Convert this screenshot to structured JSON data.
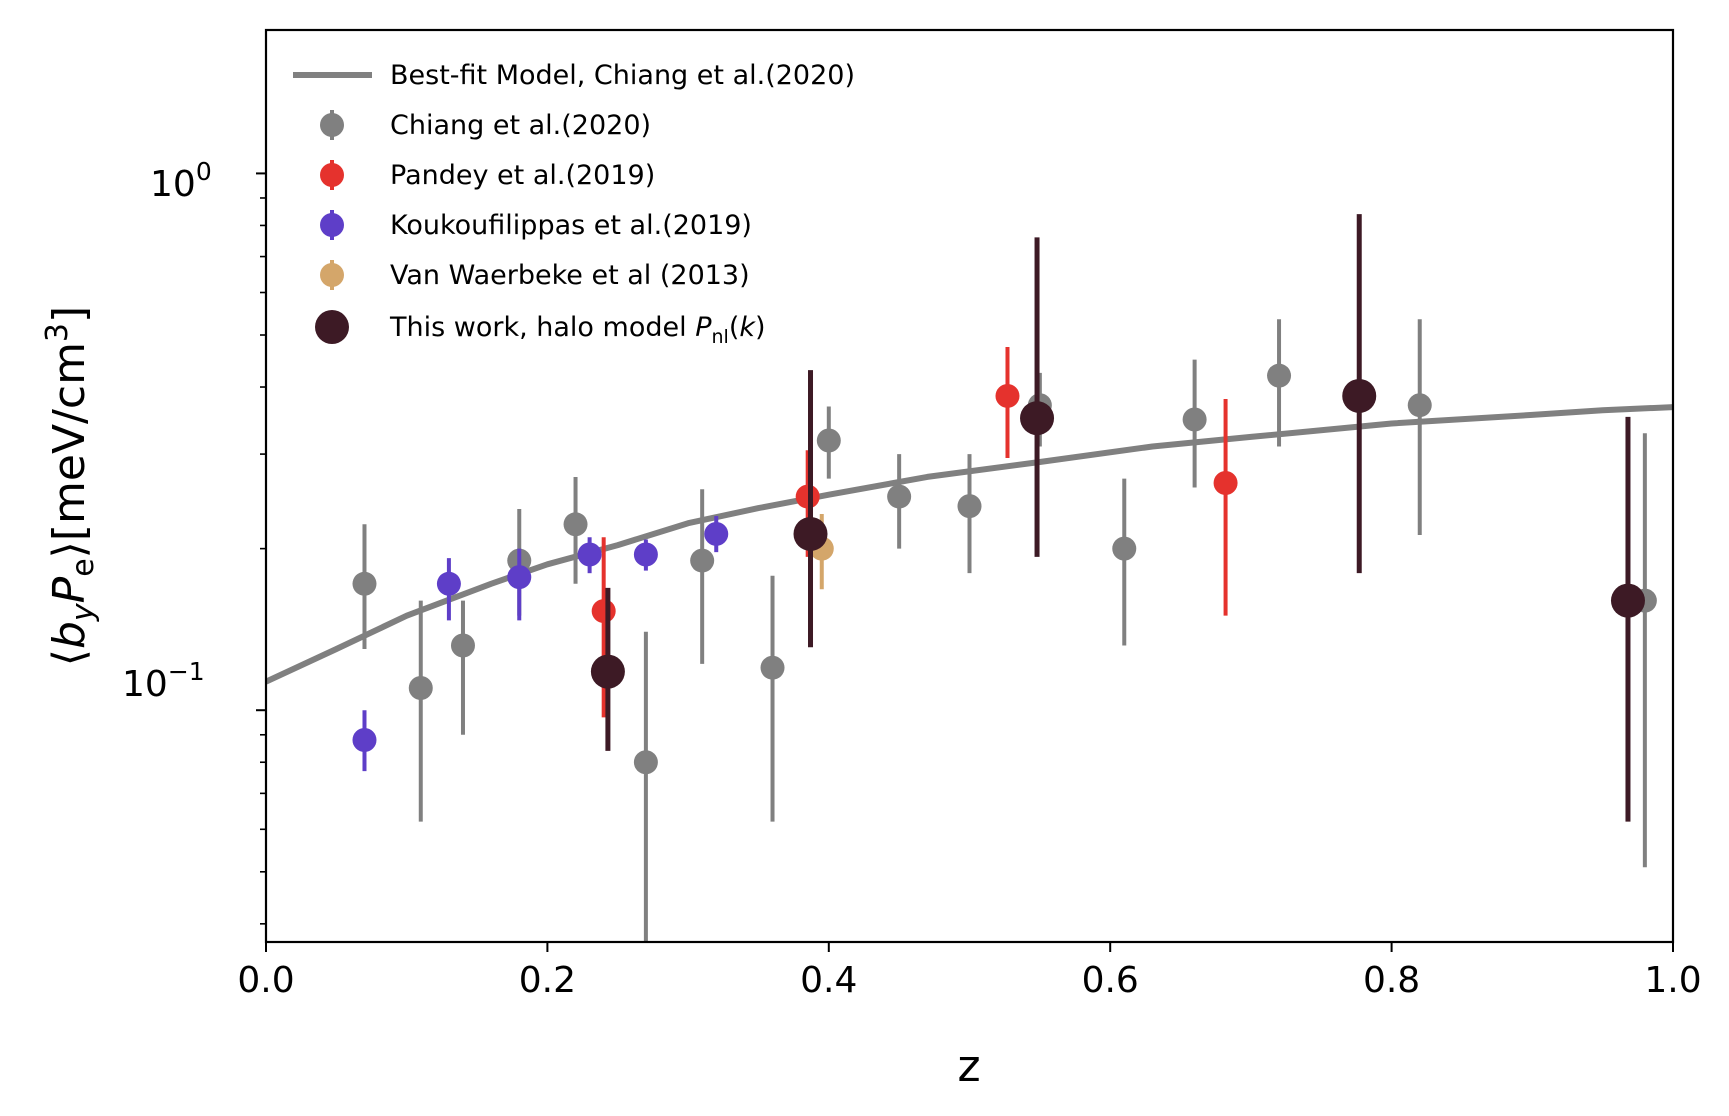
{
  "chart_data": {
    "type": "scatter",
    "title": "",
    "xlabel": "z",
    "ylabel": {
      "open": "⟨",
      "b": "b",
      "y": "y",
      "P": "P",
      "e": "e",
      "close": "⟩",
      "units": "[meV/cm",
      "exp": "3",
      "units_close": "]"
    },
    "xlim": [
      0.0,
      1.0
    ],
    "ylim": [
      0.037,
      1.85
    ],
    "yscale": "log",
    "grid": false,
    "legend_position": "top-left",
    "x_ticks": [
      {
        "value": 0.0,
        "label": "0.0"
      },
      {
        "value": 0.2,
        "label": "0.2"
      },
      {
        "value": 0.4,
        "label": "0.4"
      },
      {
        "value": 0.6,
        "label": "0.6"
      },
      {
        "value": 0.8,
        "label": "0.8"
      },
      {
        "value": 1.0,
        "label": "1.0"
      }
    ],
    "y_major_ticks": [
      {
        "value": 0.1,
        "base": "10",
        "exp": "−1"
      },
      {
        "value": 1.0,
        "base": "10",
        "exp": "0"
      }
    ],
    "y_minor_ticks": [
      0.04,
      0.05,
      0.06,
      0.07,
      0.08,
      0.09,
      0.2,
      0.3,
      0.4,
      0.5,
      0.6,
      0.7,
      0.8,
      0.9
    ],
    "line_series": {
      "name": "Best-fit Model, Chiang et al.(2020)",
      "color": "#808080",
      "points": [
        {
          "x": 0.0,
          "y": 0.113
        },
        {
          "x": 0.05,
          "y": 0.13
        },
        {
          "x": 0.1,
          "y": 0.15
        },
        {
          "x": 0.16,
          "y": 0.172
        },
        {
          "x": 0.2,
          "y": 0.187
        },
        {
          "x": 0.25,
          "y": 0.203
        },
        {
          "x": 0.3,
          "y": 0.223
        },
        {
          "x": 0.35,
          "y": 0.238
        },
        {
          "x": 0.4,
          "y": 0.252
        },
        {
          "x": 0.47,
          "y": 0.272
        },
        {
          "x": 0.55,
          "y": 0.29
        },
        {
          "x": 0.63,
          "y": 0.31
        },
        {
          "x": 0.7,
          "y": 0.323
        },
        {
          "x": 0.8,
          "y": 0.342
        },
        {
          "x": 0.9,
          "y": 0.355
        },
        {
          "x": 0.95,
          "y": 0.362
        },
        {
          "x": 1.0,
          "y": 0.367
        }
      ]
    },
    "series": [
      {
        "name": "Chiang et al.(2020)",
        "color": "#808080",
        "marker": "small",
        "points": [
          {
            "x": 0.07,
            "y": 0.172,
            "lo": 0.13,
            "hi": 0.222
          },
          {
            "x": 0.11,
            "y": 0.11,
            "lo": 0.062,
            "hi": 0.16
          },
          {
            "x": 0.14,
            "y": 0.132,
            "lo": 0.09,
            "hi": 0.16
          },
          {
            "x": 0.18,
            "y": 0.19,
            "lo": 0.15,
            "hi": 0.237
          },
          {
            "x": 0.22,
            "y": 0.222,
            "lo": 0.172,
            "hi": 0.272
          },
          {
            "x": 0.27,
            "y": 0.08,
            "lo": 0.02,
            "hi": 0.14
          },
          {
            "x": 0.31,
            "y": 0.19,
            "lo": 0.122,
            "hi": 0.258
          },
          {
            "x": 0.36,
            "y": 0.12,
            "lo": 0.062,
            "hi": 0.178
          },
          {
            "x": 0.4,
            "y": 0.318,
            "lo": 0.27,
            "hi": 0.368
          },
          {
            "x": 0.45,
            "y": 0.25,
            "lo": 0.2,
            "hi": 0.3
          },
          {
            "x": 0.5,
            "y": 0.24,
            "lo": 0.18,
            "hi": 0.3
          },
          {
            "x": 0.55,
            "y": 0.37,
            "lo": 0.31,
            "hi": 0.425
          },
          {
            "x": 0.61,
            "y": 0.2,
            "lo": 0.132,
            "hi": 0.27
          },
          {
            "x": 0.66,
            "y": 0.348,
            "lo": 0.26,
            "hi": 0.45
          },
          {
            "x": 0.72,
            "y": 0.42,
            "lo": 0.31,
            "hi": 0.535
          },
          {
            "x": 0.82,
            "y": 0.37,
            "lo": 0.212,
            "hi": 0.535
          },
          {
            "x": 0.98,
            "y": 0.16,
            "lo": 0.051,
            "hi": 0.328
          }
        ]
      },
      {
        "name": "Pandey et al.(2019)",
        "color": "#e5322d",
        "marker": "small",
        "points": [
          {
            "x": 0.24,
            "y": 0.153,
            "lo": 0.097,
            "hi": 0.21
          },
          {
            "x": 0.385,
            "y": 0.25,
            "lo": 0.193,
            "hi": 0.305
          },
          {
            "x": 0.527,
            "y": 0.385,
            "lo": 0.295,
            "hi": 0.475
          },
          {
            "x": 0.682,
            "y": 0.265,
            "lo": 0.15,
            "hi": 0.38
          }
        ]
      },
      {
        "name": "Koukoufilippas et al.(2019)",
        "color": "#5e3ec8",
        "marker": "small",
        "points": [
          {
            "x": 0.07,
            "y": 0.088,
            "lo": 0.077,
            "hi": 0.1
          },
          {
            "x": 0.13,
            "y": 0.172,
            "lo": 0.147,
            "hi": 0.192
          },
          {
            "x": 0.18,
            "y": 0.177,
            "lo": 0.147,
            "hi": 0.2
          },
          {
            "x": 0.23,
            "y": 0.195,
            "lo": 0.18,
            "hi": 0.21
          },
          {
            "x": 0.27,
            "y": 0.195,
            "lo": 0.182,
            "hi": 0.208
          },
          {
            "x": 0.32,
            "y": 0.213,
            "lo": 0.197,
            "hi": 0.23
          }
        ]
      },
      {
        "name": "Van Waerbeke et al (2013)",
        "color": "#d4a66a",
        "marker": "small",
        "points": [
          {
            "x": 0.395,
            "y": 0.2,
            "lo": 0.168,
            "hi": 0.232
          }
        ]
      },
      {
        "name": "This work, halo model",
        "legend_math": {
          "P": "P",
          "sub": "nl",
          "arg": "(k)",
          "open": "(",
          "k": "k",
          "close": ")"
        },
        "color": "#3d1a25",
        "marker": "large",
        "points": [
          {
            "x": 0.243,
            "y": 0.118,
            "lo": 0.084,
            "hi": 0.169
          },
          {
            "x": 0.387,
            "y": 0.213,
            "lo": 0.131,
            "hi": 0.43
          },
          {
            "x": 0.548,
            "y": 0.35,
            "lo": 0.193,
            "hi": 0.76
          },
          {
            "x": 0.777,
            "y": 0.385,
            "lo": 0.18,
            "hi": 0.84
          },
          {
            "x": 0.968,
            "y": 0.16,
            "lo": 0.062,
            "hi": 0.352
          }
        ]
      }
    ]
  }
}
